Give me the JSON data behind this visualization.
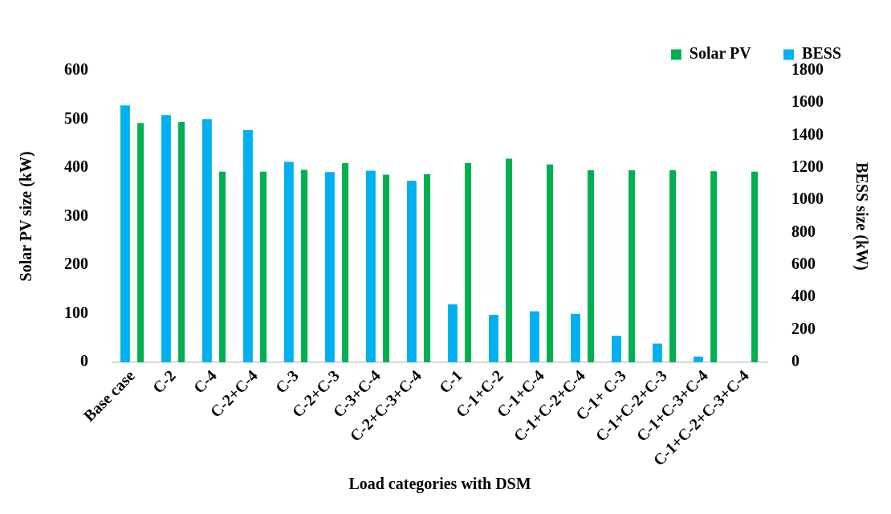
{
  "chart_data": {
    "type": "bar",
    "xlabel": "Load categories with DSM",
    "ylabel": "Solar PV size (kW)",
    "y2label": "BESS size (kW)",
    "categories": [
      "Base case",
      "C-2",
      "C-4",
      "C-2+C-4",
      "C-3",
      "C-2+C-3",
      "C-3+C-4",
      "C-2+C-3+C-4",
      "C-1",
      "C-1+C-2",
      "C-1+C-4",
      "C-1+C-2+C-4",
      "C-1+ C-3",
      "C-1+C-2+C-3",
      "C-1+C-3+C-4",
      "C-1+C-2+C-3+C-4"
    ],
    "series": [
      {
        "name": "Solar PV",
        "color": "#00b050",
        "values": [
          492,
          494,
          392,
          392,
          396,
          410,
          386,
          387,
          410,
          419,
          407,
          395,
          395,
          395,
          393,
          392
        ]
      },
      {
        "name": "BESS",
        "color": "#00b0f0",
        "axis": "y2",
        "values": [
          1586,
          1526,
          1501,
          1433,
          1237,
          1174,
          1183,
          1120,
          357,
          292,
          314,
          298,
          163,
          115,
          34,
          0
        ]
      }
    ],
    "ylim": [
      0,
      600
    ],
    "yticks": [
      0,
      100,
      200,
      300,
      400,
      500,
      600
    ],
    "y2lim": [
      0,
      1800
    ],
    "y2ticks": [
      0,
      200,
      400,
      600,
      800,
      1000,
      1200,
      1400,
      1600,
      1800
    ],
    "grid": false,
    "legend": "top right"
  }
}
